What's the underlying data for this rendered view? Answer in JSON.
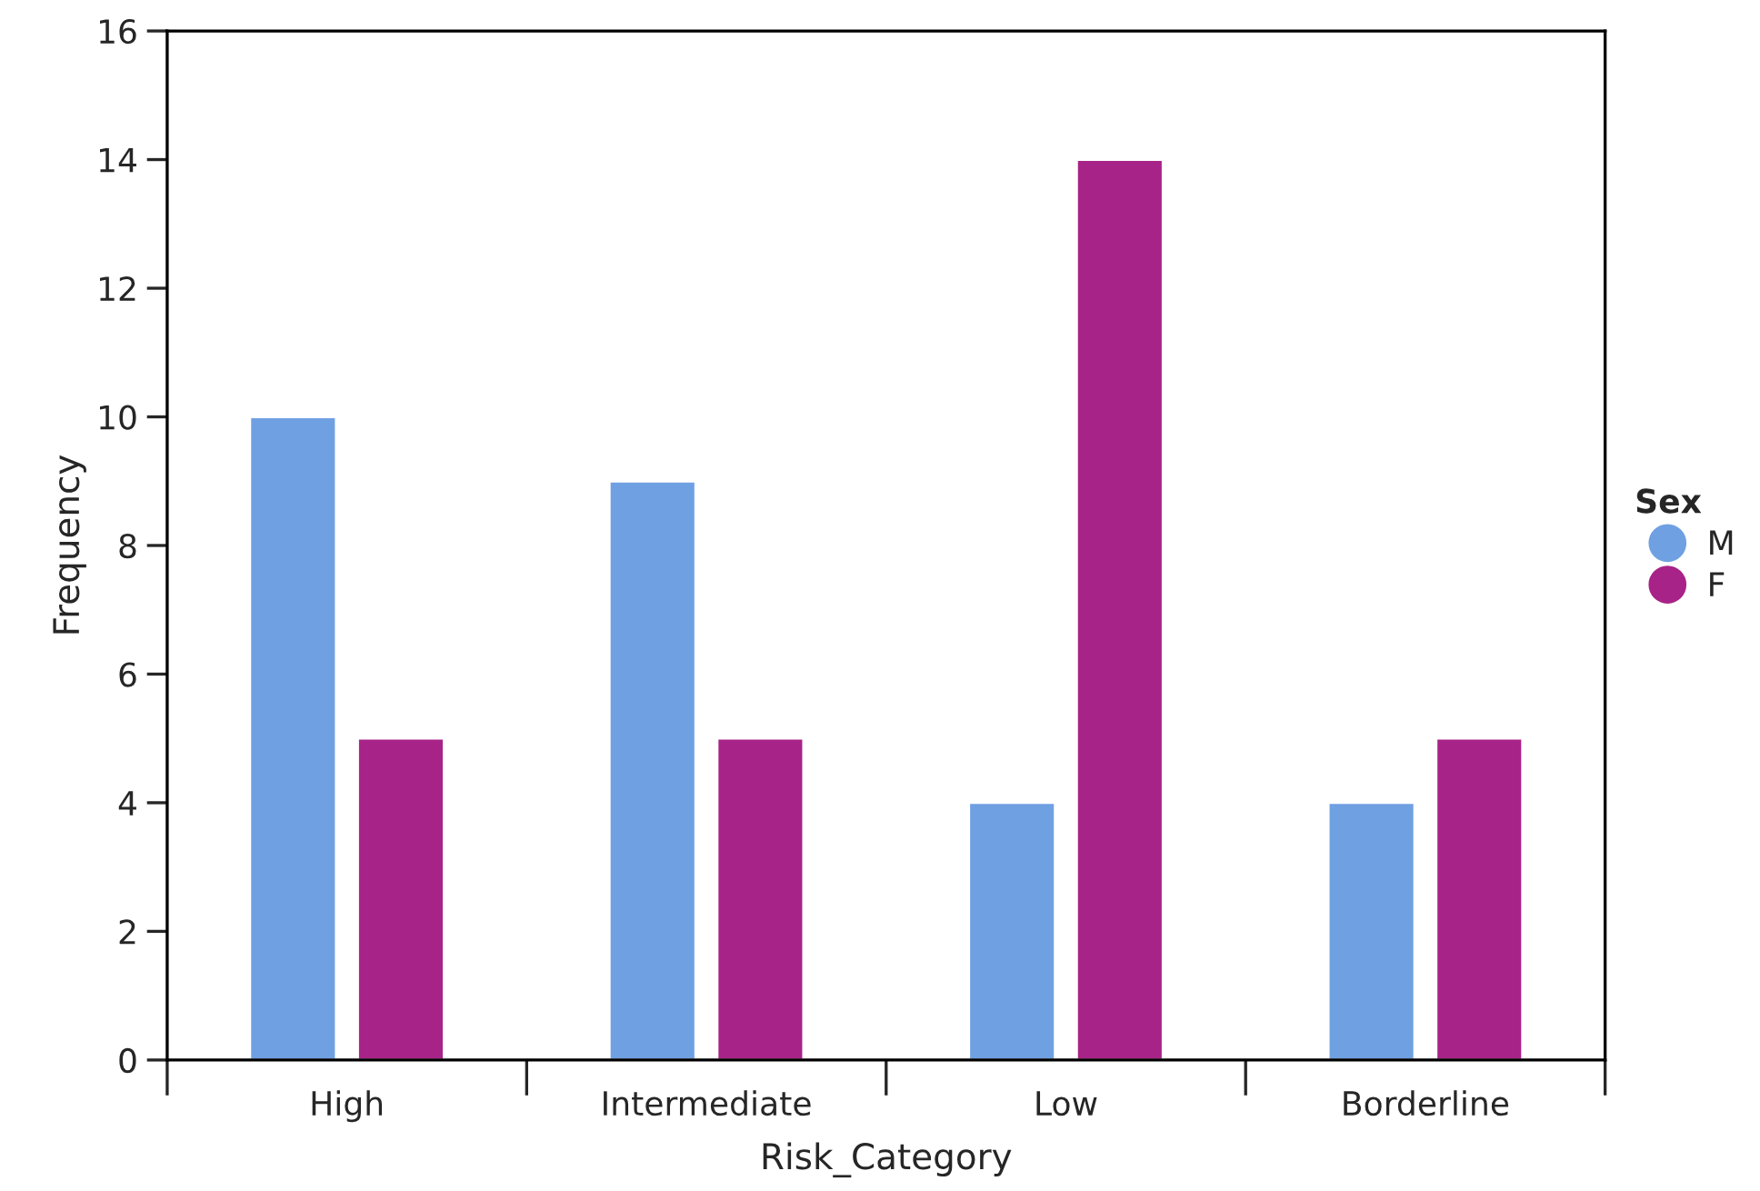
{
  "chart_data": {
    "type": "bar",
    "xlabel": "Risk_Category",
    "ylabel": "Frequency",
    "legend_title": "Sex",
    "legend": "right",
    "marker": "circle",
    "categories": [
      "High",
      "Intermediate",
      "Low",
      "Borderline"
    ],
    "series": [
      {
        "name": "M",
        "color": "#6fa0e2",
        "values": [
          10,
          9,
          4,
          4
        ]
      },
      {
        "name": "F",
        "color": "#a82387",
        "values": [
          5,
          5,
          14,
          5
        ]
      }
    ],
    "ylim": [
      0,
      16
    ],
    "yticks": [
      0,
      2,
      4,
      6,
      8,
      10,
      12,
      14,
      16
    ],
    "grid": false
  }
}
